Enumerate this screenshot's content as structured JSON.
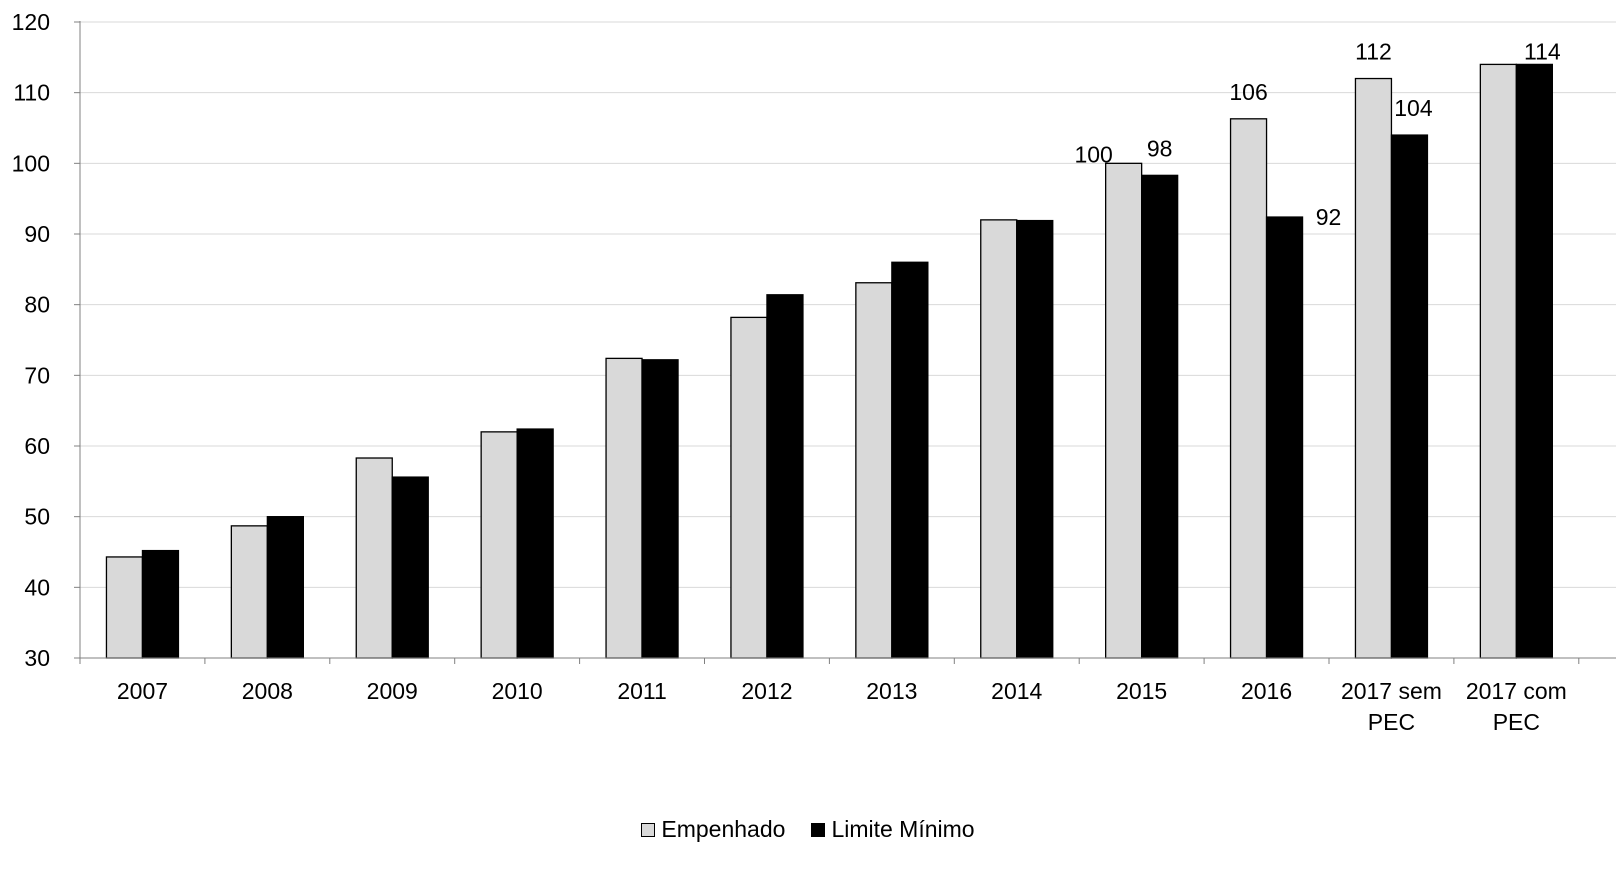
{
  "chart_data": {
    "type": "bar",
    "categories": [
      "2007",
      "2008",
      "2009",
      "2010",
      "2011",
      "2012",
      "2013",
      "2014",
      "2015",
      "2016",
      "2017 sem PEC",
      "2017 com PEC"
    ],
    "category_lines": [
      [
        "2007"
      ],
      [
        "2008"
      ],
      [
        "2009"
      ],
      [
        "2010"
      ],
      [
        "2011"
      ],
      [
        "2012"
      ],
      [
        "2013"
      ],
      [
        "2014"
      ],
      [
        "2015"
      ],
      [
        "2016"
      ],
      [
        "2017 sem",
        "PEC"
      ],
      [
        "2017 com",
        "PEC"
      ]
    ],
    "series": [
      {
        "name": "Empenhado",
        "color": "#d9d9d9",
        "values": [
          44.3,
          48.7,
          58.3,
          62.0,
          72.4,
          78.2,
          83.1,
          92.0,
          100.0,
          106.3,
          112.0,
          114.0
        ],
        "labels": [
          "",
          "",
          "",
          "",
          "",
          "",
          "",
          "",
          "100",
          "106",
          "112",
          ""
        ]
      },
      {
        "name": "Limite Mínimo",
        "color": "#000000",
        "values": [
          45.2,
          50.0,
          55.6,
          62.4,
          72.2,
          81.4,
          86.0,
          91.9,
          98.3,
          92.4,
          104.0,
          114.0
        ],
        "labels": [
          "",
          "",
          "",
          "",
          "",
          "",
          "",
          "",
          "98",
          "92",
          "104",
          "114"
        ]
      }
    ],
    "ylim": [
      30,
      120
    ],
    "yticks": [
      30,
      40,
      50,
      60,
      70,
      80,
      90,
      100,
      110,
      120
    ],
    "grid": true,
    "legend_position": "bottom",
    "title": "",
    "xlabel": "",
    "ylabel": ""
  }
}
